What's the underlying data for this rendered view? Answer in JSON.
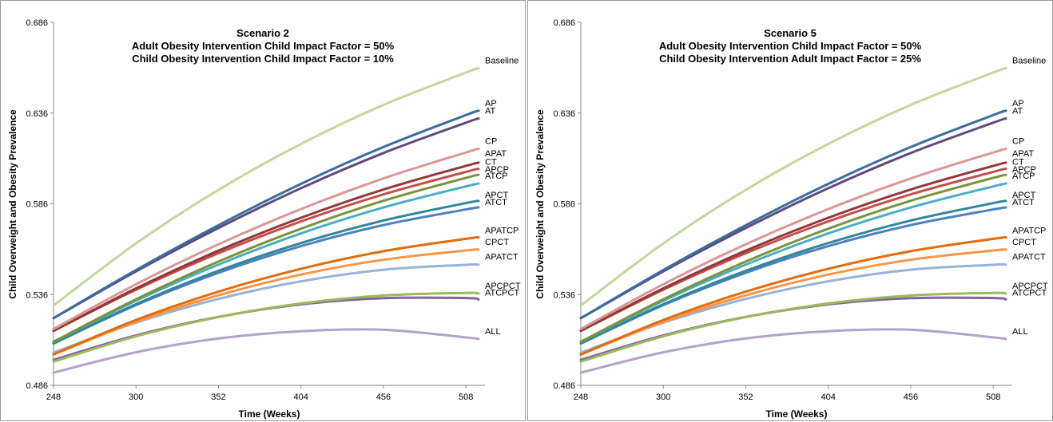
{
  "panels": [
    {
      "title1": "Scenario 2",
      "title2": "Adult Obesity Intervention Child Impact Factor = 50%",
      "title3": "Child Obesity Intervention Child Impact Factor = 10%"
    },
    {
      "title1": "Scenario 5",
      "title2": "Adult Obesity Intervention Child Impact Factor = 50%",
      "title3": "Child Obesity Intervention Adult Impact Factor = 25%"
    }
  ],
  "chart_data": [
    {
      "type": "line",
      "title": "Scenario 2",
      "subtitle": [
        "Adult Obesity Intervention Child Impact Factor = 50%",
        "Child Obesity Intervention Child Impact Factor = 10%"
      ],
      "xlabel": "Time (Weeks)",
      "ylabel": "Child Overweight and Obesity Prevalence",
      "xlim": [
        248,
        520
      ],
      "ylim": [
        0.486,
        0.686
      ],
      "xticks": [
        "248",
        "300",
        "352",
        "404",
        "456",
        "508"
      ],
      "yticks": [
        "0.486",
        "0.536",
        "0.586",
        "0.636",
        "0.686"
      ],
      "x": [
        248,
        300,
        352,
        404,
        456,
        508,
        516
      ],
      "series": [
        {
          "name": "Baseline",
          "color": "#c3d69b",
          "values": [
            0.53,
            0.5642,
            0.5937,
            0.619,
            0.6405,
            0.6583,
            0.6607
          ]
        },
        {
          "name": "AP",
          "color": "#3a6d9e",
          "values": [
            0.523,
            0.5495,
            0.5742,
            0.597,
            0.6173,
            0.6349,
            0.6373
          ]
        },
        {
          "name": "AT",
          "color": "#60497a",
          "values": [
            0.523,
            0.5488,
            0.5727,
            0.5946,
            0.614,
            0.6307,
            0.633
          ]
        },
        {
          "name": "CP",
          "color": "#d99795",
          "values": [
            0.517,
            0.5417,
            0.5637,
            0.5831,
            0.6,
            0.6143,
            0.6163
          ]
        },
        {
          "name": "APAT",
          "color": "#953735",
          "values": [
            0.516,
            0.5394,
            0.5602,
            0.5783,
            0.5939,
            0.6069,
            0.6087
          ]
        },
        {
          "name": "CT",
          "color": "#c0504d",
          "values": [
            0.516,
            0.5387,
            0.5588,
            0.5763,
            0.5912,
            0.6036,
            0.6053
          ]
        },
        {
          "name": "APCP",
          "color": "#77933c",
          "values": [
            0.51,
            0.5334,
            0.5542,
            0.5723,
            0.5877,
            0.6003,
            0.602
          ]
        },
        {
          "name": "ATCP",
          "color": "#4bacc6",
          "values": [
            0.51,
            0.5326,
            0.5525,
            0.5697,
            0.584,
            0.5956,
            0.5972
          ]
        },
        {
          "name": "APCT",
          "color": "#31859c",
          "values": [
            0.509,
            0.5307,
            0.5491,
            0.5644,
            0.5768,
            0.5864,
            0.5876
          ]
        },
        {
          "name": "ATCT",
          "color": "#4f81bd",
          "values": [
            0.509,
            0.5302,
            0.548,
            0.5627,
            0.5743,
            0.5829,
            0.584
          ]
        },
        {
          "name": "APATCP",
          "color": "#e46c0a",
          "values": [
            0.503,
            0.522,
            0.5376,
            0.5502,
            0.5599,
            0.5667,
            0.5675
          ]
        },
        {
          "name": "CPCT",
          "color": "#f79646",
          "values": [
            0.503,
            0.521,
            0.5356,
            0.547,
            0.5552,
            0.5603,
            0.5608
          ]
        },
        {
          "name": "APATCT",
          "color": "#95b3d7",
          "values": [
            0.504,
            0.5205,
            0.5336,
            0.5433,
            0.5497,
            0.5524,
            0.5525
          ]
        },
        {
          "name": "APCPCT",
          "color": "#9bbb59",
          "values": [
            0.499,
            0.513,
            0.5236,
            0.5311,
            0.5355,
            0.5369,
            0.5366
          ]
        },
        {
          "name": "ATCPCT",
          "color": "#8064a2",
          "values": [
            0.5,
            0.5135,
            0.5237,
            0.5306,
            0.534,
            0.5341,
            0.5333
          ]
        },
        {
          "name": "ALL",
          "color": "#b3a2c7",
          "values": [
            0.493,
            0.5042,
            0.5118,
            0.5158,
            0.5166,
            0.5124,
            0.5115
          ]
        }
      ]
    },
    {
      "type": "line",
      "title": "Scenario 5",
      "subtitle": [
        "Adult Obesity Intervention Child Impact Factor = 50%",
        "Child Obesity Intervention Adult Impact Factor = 25%"
      ],
      "xlabel": "Time (Weeks)",
      "ylabel": "Child Overweight and Obesity Prevalence",
      "xlim": [
        248,
        520
      ],
      "ylim": [
        0.486,
        0.686
      ],
      "xticks": [
        "248",
        "300",
        "352",
        "404",
        "456",
        "508"
      ],
      "yticks": [
        "0.486",
        "0.536",
        "0.586",
        "0.636",
        "0.686"
      ],
      "x": [
        248,
        300,
        352,
        404,
        456,
        508,
        516
      ],
      "series": [
        {
          "name": "Baseline",
          "color": "#c3d69b",
          "values": [
            0.53,
            0.5642,
            0.5937,
            0.619,
            0.6405,
            0.6583,
            0.6607
          ]
        },
        {
          "name": "AP",
          "color": "#3a6d9e",
          "values": [
            0.523,
            0.5495,
            0.5742,
            0.597,
            0.6173,
            0.6349,
            0.6373
          ]
        },
        {
          "name": "AT",
          "color": "#60497a",
          "values": [
            0.523,
            0.5488,
            0.5727,
            0.5946,
            0.614,
            0.6307,
            0.633
          ]
        },
        {
          "name": "CP",
          "color": "#d99795",
          "values": [
            0.517,
            0.5417,
            0.5637,
            0.5831,
            0.6,
            0.6143,
            0.6163
          ]
        },
        {
          "name": "APAT",
          "color": "#953735",
          "values": [
            0.516,
            0.5394,
            0.5602,
            0.5783,
            0.5939,
            0.6069,
            0.6087
          ]
        },
        {
          "name": "CT",
          "color": "#c0504d",
          "values": [
            0.516,
            0.5387,
            0.5588,
            0.5763,
            0.5912,
            0.6036,
            0.6053
          ]
        },
        {
          "name": "APCP",
          "color": "#77933c",
          "values": [
            0.51,
            0.5334,
            0.5542,
            0.5723,
            0.5877,
            0.6003,
            0.602
          ]
        },
        {
          "name": "ATCP",
          "color": "#4bacc6",
          "values": [
            0.51,
            0.5326,
            0.5525,
            0.5697,
            0.584,
            0.5956,
            0.5972
          ]
        },
        {
          "name": "APCT",
          "color": "#31859c",
          "values": [
            0.509,
            0.5307,
            0.5491,
            0.5644,
            0.5768,
            0.5864,
            0.5876
          ]
        },
        {
          "name": "ATCT",
          "color": "#4f81bd",
          "values": [
            0.509,
            0.5302,
            0.548,
            0.5627,
            0.5743,
            0.5829,
            0.584
          ]
        },
        {
          "name": "APATCP",
          "color": "#e46c0a",
          "values": [
            0.503,
            0.522,
            0.5376,
            0.5502,
            0.5599,
            0.5667,
            0.5675
          ]
        },
        {
          "name": "CPCT",
          "color": "#f79646",
          "values": [
            0.503,
            0.521,
            0.5356,
            0.547,
            0.5552,
            0.5603,
            0.5608
          ]
        },
        {
          "name": "APATCT",
          "color": "#95b3d7",
          "values": [
            0.504,
            0.5205,
            0.5336,
            0.5433,
            0.5497,
            0.5524,
            0.5525
          ]
        },
        {
          "name": "APCPCT",
          "color": "#9bbb59",
          "values": [
            0.499,
            0.513,
            0.5236,
            0.5311,
            0.5355,
            0.5369,
            0.5366
          ]
        },
        {
          "name": "ATCPCT",
          "color": "#8064a2",
          "values": [
            0.5,
            0.5135,
            0.5237,
            0.5306,
            0.534,
            0.5341,
            0.5333
          ]
        },
        {
          "name": "ALL",
          "color": "#b3a2c7",
          "values": [
            0.493,
            0.5042,
            0.5118,
            0.5158,
            0.5166,
            0.5124,
            0.5115
          ]
        }
      ]
    }
  ]
}
